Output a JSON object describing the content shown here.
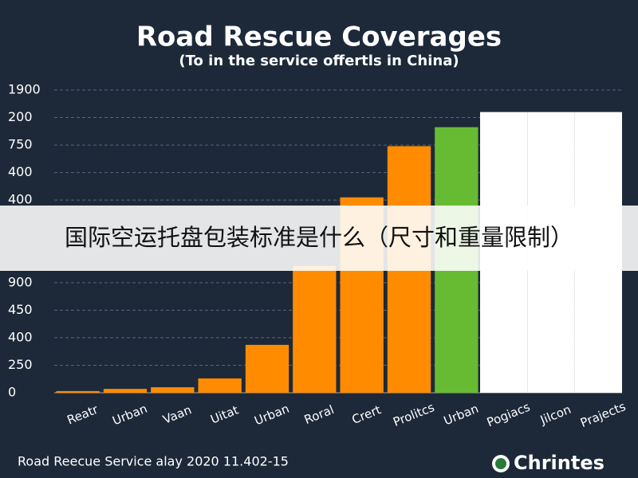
{
  "chart_data": {
    "type": "bar",
    "title": "Road Rescue Coverages",
    "subtitle": "(To in the service offertls in China)",
    "categories": [
      "Reatr",
      "Urban",
      "Vaan",
      "Uitat",
      "Urban",
      "Roral",
      "Crert",
      "Prolitcs",
      "Urban",
      "Pogiacs",
      "Jilcon",
      "Prajects"
    ],
    "values": [
      0.06,
      0.14,
      0.2,
      0.52,
      1.74,
      4.6,
      7.1,
      8.96,
      9.65,
      10.2,
      10.2,
      10.2
    ],
    "colors": [
      "#ff8c00",
      "#ff8c00",
      "#ff8c00",
      "#ff8c00",
      "#ff8c00",
      "#ff8c00",
      "#ff8c00",
      "#ff8c00",
      "#66bb33",
      "#ffffff",
      "#ffffff",
      "#ffffff"
    ],
    "ylim": [
      0,
      11
    ],
    "yticks": [
      0,
      {
        "value": 1,
        "label": "250"
      },
      {
        "value": 2,
        "label": "400"
      },
      {
        "value": 3,
        "label": "450"
      },
      {
        "value": 4,
        "label": "900"
      },
      {
        "value": 7,
        "label": "400"
      },
      {
        "value": 8,
        "label": "400"
      },
      {
        "value": 9,
        "label": "750"
      },
      {
        "value": 10,
        "label": "200"
      },
      {
        "value": 11,
        "label": "1900"
      }
    ],
    "grid": true
  },
  "footer": "Road Reecue Service alay 2020 11.402-15",
  "logo": "Chrintes",
  "banner": "国际空运托盘包装标准是什么（尺寸和重量限制）"
}
